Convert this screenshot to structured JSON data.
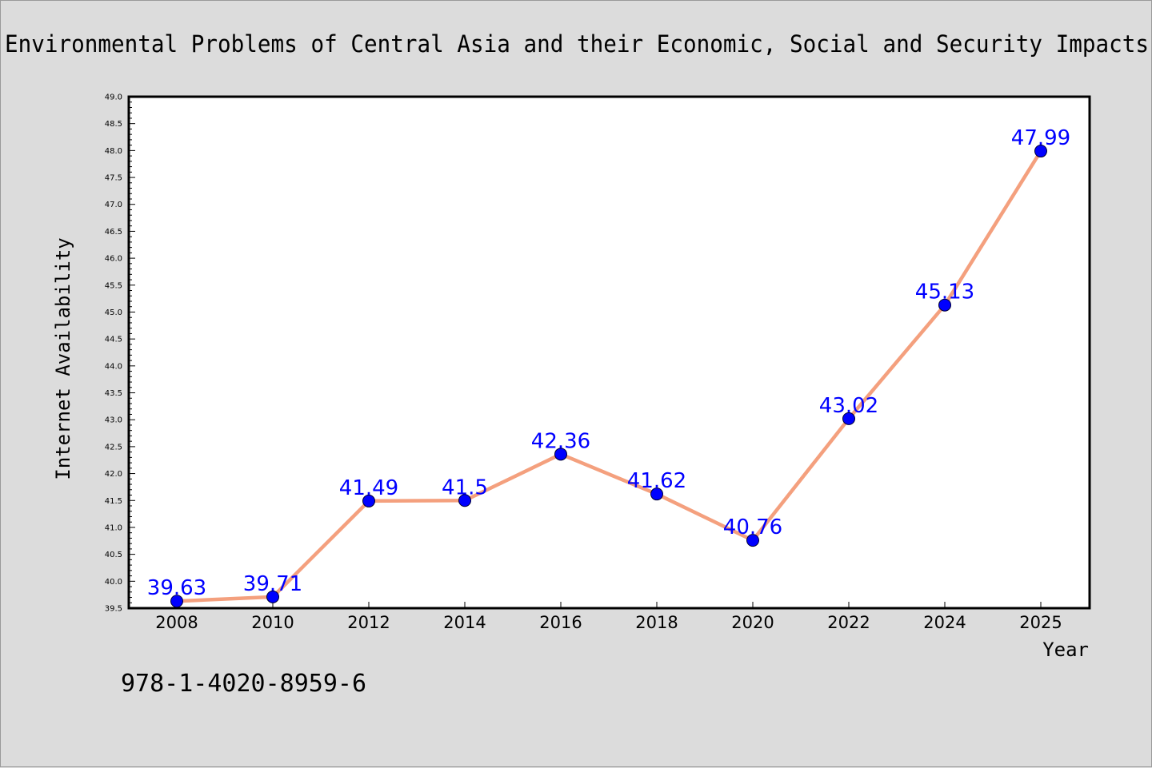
{
  "chart_data": {
    "type": "line",
    "title": "Environmental Problems of Central Asia and their Economic, Social and Security Impacts",
    "xlabel": "Year",
    "ylabel": "Internet Availability",
    "categories": [
      "2008",
      "2010",
      "2012",
      "2014",
      "2016",
      "2018",
      "2020",
      "2022",
      "2024",
      "2025"
    ],
    "values": [
      39.63,
      39.71,
      41.49,
      41.5,
      42.36,
      41.62,
      40.76,
      43.02,
      45.13,
      47.99
    ],
    "value_labels": [
      "39.63",
      "39.71",
      "41.49",
      "41.5",
      "42.36",
      "41.62",
      "40.76",
      "43.02",
      "45.13",
      "47.99"
    ],
    "ylim": [
      39.5,
      49.0
    ],
    "y_ticks": [
      "39.5",
      "40.0",
      "40.5",
      "41.0",
      "41.5",
      "42.0",
      "42.5",
      "43.0",
      "43.5",
      "44.0",
      "44.5",
      "45.0",
      "45.5",
      "46.0",
      "46.5",
      "47.0",
      "47.5",
      "48.0",
      "48.5",
      "49.0"
    ],
    "grid": false,
    "legend": "none",
    "colors": {
      "line": "#f4a07e",
      "marker": "#0000ff",
      "data_label": "#0000ff",
      "background": "#dcdcdc",
      "plot_background": "#ffffff"
    }
  },
  "annotation": "978-1-4020-8959-6"
}
